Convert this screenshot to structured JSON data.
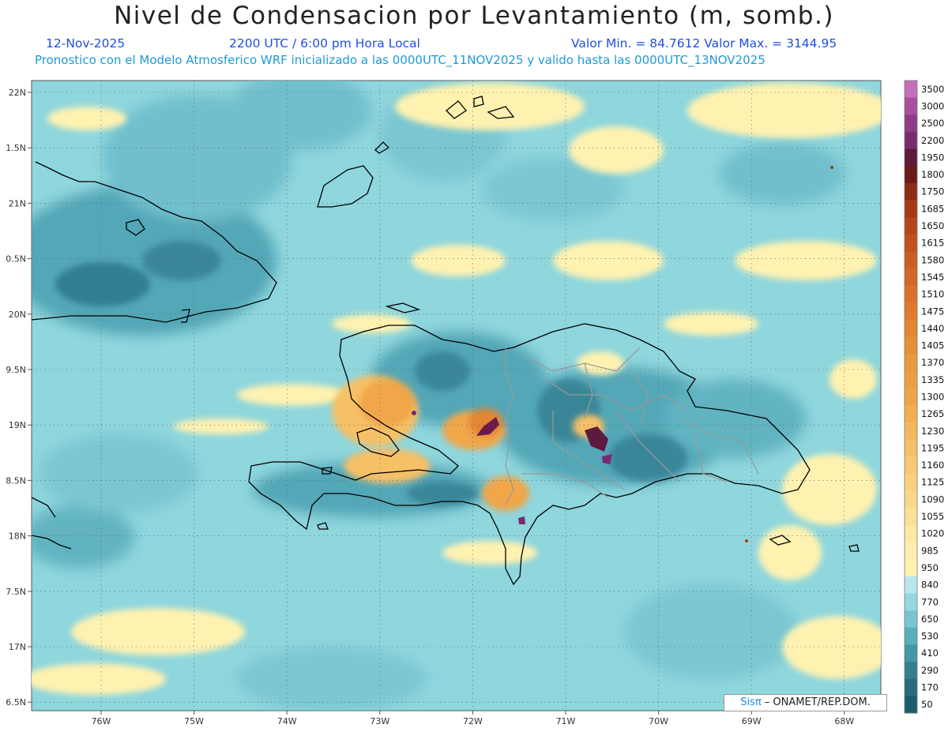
{
  "header": {
    "title": "Nivel de Condensacion por Levantamiento (m, somb.)",
    "date": "12-Nov-2025",
    "time": "2200 UTC / 6:00 pm Hora Local",
    "min_max": "Valor Min. = 84.7612  Valor Max. = 3144.95",
    "forecast_note": "Pronostico con el Modelo Atmosferico WRF inicializado a las 0000UTC_11NOV2025 y valido hasta las  0000UTC_13NOV2025"
  },
  "axes": {
    "lat_labels": [
      "22N",
      "1.5N",
      "21N",
      "0.5N",
      "20N",
      "9.5N",
      "19N",
      "8.5N",
      "18N",
      "7.5N",
      "17N",
      "6.5N"
    ],
    "lon_labels": [
      "76W",
      "75W",
      "74W",
      "73W",
      "72W",
      "71W",
      "70W",
      "69W",
      "68W"
    ]
  },
  "colorbar": {
    "levels": [
      "3500",
      "3000",
      "2500",
      "2200",
      "1950",
      "1800",
      "1750",
      "1685",
      "1650",
      "1615",
      "1580",
      "1545",
      "1510",
      "1475",
      "1440",
      "1405",
      "1370",
      "1335",
      "1300",
      "1265",
      "1230",
      "1195",
      "1160",
      "1125",
      "1090",
      "1055",
      "1020",
      "985",
      "950",
      "840",
      "770",
      "650",
      "530",
      "410",
      "290",
      "170",
      "50"
    ],
    "colors": [
      "#c56fbb",
      "#aa4f9c",
      "#8e3b86",
      "#7a2a70",
      "#5e1a3e",
      "#6b1a1a",
      "#8b2c14",
      "#a53a14",
      "#b8451a",
      "#c4501e",
      "#cd5c22",
      "#d46626",
      "#db7029",
      "#e07a2d",
      "#e38532",
      "#e69036",
      "#e99b3c",
      "#ec9f40",
      "#f0a648",
      "#f2af52",
      "#f4b85c",
      "#f6c066",
      "#f8c872",
      "#f9d07e",
      "#fad88a",
      "#fbe096",
      "#fce8a2",
      "#fdeeb0",
      "#fff2b0",
      "#b8e8ee",
      "#96d8e0",
      "#78c4d0",
      "#5aaebd",
      "#4497a8",
      "#357f93",
      "#286b80",
      "#1c5a6e"
    ]
  },
  "credit": {
    "logo": "Sisπ",
    "org": " – ONAMET/REP.DOM."
  },
  "colors": {
    "background_sea": "#8fd6dd",
    "coastline": "#000000",
    "province_lines": "#9a9a9a"
  }
}
